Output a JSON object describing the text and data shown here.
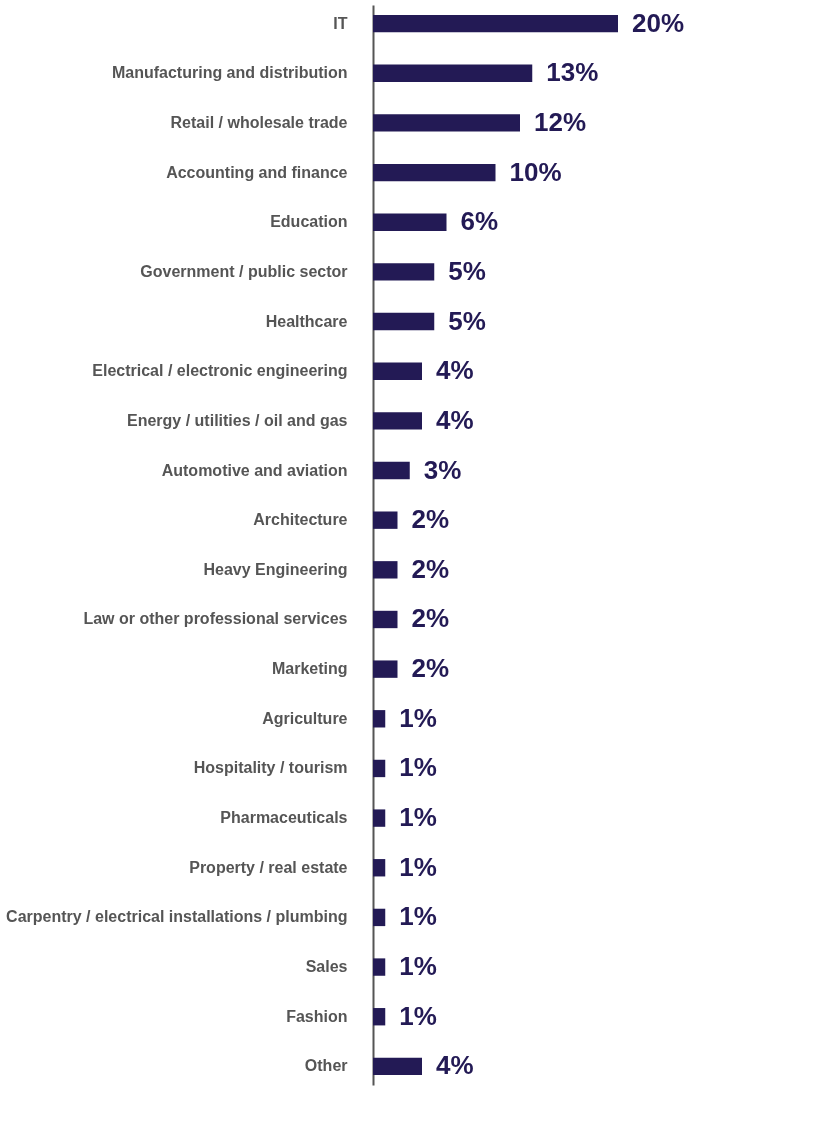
{
  "chart_data": {
    "type": "bar",
    "orientation": "horizontal",
    "categories": [
      "IT",
      "Manufacturing and distribution",
      "Retail / wholesale trade",
      "Accounting and finance",
      "Education",
      "Government / public sector",
      "Healthcare",
      "Electrical / electronic engineering",
      "Energy / utilities / oil and gas",
      "Automotive and aviation",
      "Architecture",
      "Heavy Engineering",
      "Law or other professional services",
      "Marketing",
      "Agriculture",
      "Hospitality / tourism",
      "Pharmaceuticals",
      "Property / real estate",
      "Carpentry / electrical installations / plumbing",
      "Sales",
      "Fashion",
      "Other"
    ],
    "values": [
      20,
      13,
      12,
      10,
      6,
      5,
      5,
      4,
      4,
      3,
      2,
      2,
      2,
      2,
      1,
      1,
      1,
      1,
      1,
      1,
      1,
      4
    ],
    "value_labels": [
      "20%",
      "13%",
      "12%",
      "10%",
      "6%",
      "5%",
      "5%",
      "4%",
      "4%",
      "3%",
      "2%",
      "2%",
      "2%",
      "2%",
      "1%",
      "1%",
      "1%",
      "1%",
      "1%",
      "1%",
      "1%",
      "4%"
    ],
    "color": "#231a55",
    "tick_labels": "y",
    "grid": false
  }
}
